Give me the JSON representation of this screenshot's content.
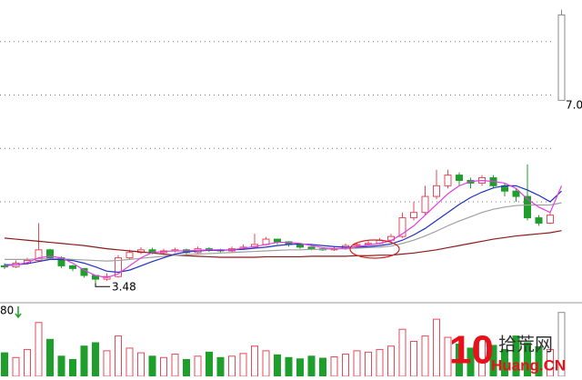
{
  "chart_data": {
    "type": "candlestick",
    "categories": [
      null,
      null,
      null,
      null,
      null,
      null,
      null,
      null,
      null,
      null,
      null,
      null,
      null,
      null,
      null,
      null,
      null,
      null,
      null,
      null,
      null,
      null,
      null,
      null,
      null,
      null,
      null,
      null,
      null,
      null,
      null,
      null,
      null,
      null,
      null,
      null,
      null,
      null,
      null,
      null,
      null,
      null,
      null,
      null,
      null,
      null,
      null,
      null,
      null,
      null
    ],
    "open": [
      3.8,
      3.78,
      3.85,
      3.9,
      4.1,
      3.95,
      3.8,
      3.75,
      3.62,
      3.55,
      3.6,
      3.95,
      4.05,
      4.1,
      4.05,
      4.08,
      4.1,
      4.05,
      4.12,
      4.1,
      4.08,
      4.12,
      4.15,
      4.2,
      4.3,
      4.25,
      4.2,
      4.15,
      4.12,
      4.1,
      4.12,
      4.18,
      4.2,
      4.22,
      4.28,
      4.35,
      4.7,
      4.8,
      5.1,
      5.3,
      5.5,
      5.4,
      5.35,
      5.45,
      5.3,
      5.2,
      5.1,
      4.7,
      4.6,
      6.9
    ],
    "high": [
      3.85,
      3.9,
      3.95,
      4.6,
      4.12,
      3.98,
      3.82,
      3.7,
      3.62,
      3.66,
      4.0,
      4.1,
      4.15,
      4.14,
      4.12,
      4.14,
      4.12,
      4.16,
      4.15,
      4.12,
      4.16,
      4.2,
      4.4,
      4.34,
      4.3,
      4.26,
      4.2,
      4.16,
      4.14,
      4.16,
      4.22,
      4.24,
      4.26,
      4.32,
      4.4,
      4.8,
      5.0,
      5.3,
      5.6,
      5.6,
      5.55,
      5.45,
      5.5,
      5.5,
      5.35,
      5.25,
      5.7,
      4.75,
      4.8,
      8.6
    ],
    "low": [
      3.74,
      3.76,
      3.82,
      3.88,
      3.92,
      3.76,
      3.7,
      3.58,
      3.48,
      3.52,
      3.58,
      3.92,
      4.02,
      4.02,
      4.02,
      4.05,
      4.02,
      4.03,
      4.06,
      4.05,
      4.05,
      4.1,
      4.12,
      4.18,
      4.2,
      4.16,
      4.12,
      4.09,
      4.08,
      4.08,
      4.1,
      4.15,
      4.18,
      4.2,
      4.25,
      4.32,
      4.65,
      4.75,
      5.05,
      5.25,
      5.3,
      5.25,
      5.3,
      5.25,
      5.1,
      5.0,
      4.65,
      4.55,
      4.58,
      6.9
    ],
    "close": [
      3.78,
      3.85,
      3.9,
      4.1,
      3.95,
      3.8,
      3.75,
      3.62,
      3.55,
      3.6,
      3.95,
      4.05,
      4.1,
      4.05,
      4.08,
      4.1,
      4.05,
      4.12,
      4.1,
      4.08,
      4.12,
      4.15,
      4.2,
      4.3,
      4.25,
      4.2,
      4.15,
      4.12,
      4.1,
      4.12,
      4.18,
      4.2,
      4.22,
      4.28,
      4.35,
      4.7,
      4.8,
      5.1,
      5.3,
      5.5,
      5.4,
      5.35,
      5.45,
      5.3,
      5.2,
      5.1,
      4.7,
      4.6,
      4.75,
      8.5
    ],
    "volume": [
      35,
      28,
      40,
      80,
      55,
      30,
      25,
      45,
      50,
      38,
      60,
      42,
      35,
      30,
      28,
      33,
      25,
      30,
      36,
      28,
      30,
      34,
      45,
      38,
      32,
      28,
      26,
      30,
      27,
      29,
      33,
      38,
      36,
      40,
      45,
      70,
      52,
      60,
      85,
      58,
      48,
      42,
      55,
      46,
      40,
      60,
      50,
      44,
      40,
      95
    ],
    "up_color": "#e8485a",
    "down_color": "#1e9e2a",
    "last_color": "#8a8a8a",
    "ylim": [
      3.16,
      8.78
    ],
    "vlim": [
      0,
      100
    ],
    "grid_levels": [
      5,
      6,
      7,
      8
    ],
    "lines": [
      {
        "color": "#8b1a1a",
        "values": [
          4.32,
          4.3,
          4.28,
          4.26,
          4.24,
          4.22,
          4.2,
          4.18,
          4.15,
          4.12,
          4.1,
          4.08,
          4.06,
          4.04,
          4.02,
          4.0,
          3.99,
          3.98,
          3.97,
          3.96,
          3.96,
          3.96,
          3.96,
          3.97,
          3.97,
          3.97,
          3.97,
          3.98,
          3.98,
          3.98,
          3.98,
          3.99,
          3.99,
          4.0,
          4.0,
          4.02,
          4.04,
          4.07,
          4.1,
          4.14,
          4.18,
          4.22,
          4.26,
          4.3,
          4.33,
          4.36,
          4.38,
          4.4,
          4.42,
          4.46
        ]
      },
      {
        "color": "#a0a0a0",
        "values": [
          3.92,
          3.92,
          3.92,
          3.93,
          3.93,
          3.93,
          3.92,
          3.91,
          3.9,
          3.89,
          3.9,
          3.92,
          3.94,
          3.96,
          3.98,
          4.0,
          4.01,
          4.02,
          4.03,
          4.04,
          4.05,
          4.06,
          4.07,
          4.08,
          4.09,
          4.1,
          4.1,
          4.11,
          4.11,
          4.12,
          4.12,
          4.13,
          4.14,
          4.15,
          4.17,
          4.22,
          4.28,
          4.36,
          4.45,
          4.55,
          4.64,
          4.72,
          4.8,
          4.86,
          4.9,
          4.93,
          4.94,
          4.94,
          4.94,
          4.98
        ]
      },
      {
        "color": "#2030c0",
        "values": [
          3.82,
          3.82,
          3.84,
          3.88,
          3.92,
          3.92,
          3.9,
          3.85,
          3.78,
          3.7,
          3.68,
          3.72,
          3.8,
          3.88,
          3.95,
          4.02,
          4.06,
          4.08,
          4.09,
          4.09,
          4.1,
          4.11,
          4.13,
          4.15,
          4.18,
          4.2,
          4.21,
          4.2,
          4.18,
          4.16,
          4.15,
          4.15,
          4.16,
          4.18,
          4.21,
          4.28,
          4.38,
          4.5,
          4.65,
          4.8,
          4.95,
          5.08,
          5.18,
          5.26,
          5.3,
          5.3,
          5.22,
          5.12,
          5.0,
          5.2
        ]
      },
      {
        "color": "#e040e0",
        "values": [
          3.8,
          3.82,
          3.86,
          3.95,
          3.98,
          3.95,
          3.85,
          3.72,
          3.62,
          3.58,
          3.65,
          3.8,
          3.95,
          4.05,
          4.07,
          4.08,
          4.08,
          4.09,
          4.1,
          4.1,
          4.1,
          4.13,
          4.16,
          4.2,
          4.24,
          4.24,
          4.22,
          4.18,
          4.14,
          4.12,
          4.13,
          4.16,
          4.19,
          4.22,
          4.27,
          4.4,
          4.55,
          4.75,
          4.95,
          5.15,
          5.3,
          5.38,
          5.4,
          5.38,
          5.35,
          5.25,
          5.05,
          4.9,
          4.8,
          5.3
        ]
      }
    ],
    "annotations": [
      {
        "text": "3.48"
      },
      {
        "text": "7.0"
      }
    ],
    "volume_axis_label": "80"
  },
  "watermark": {
    "number": "10",
    "name": "拾荒网",
    "domain": "Huang.CN"
  }
}
